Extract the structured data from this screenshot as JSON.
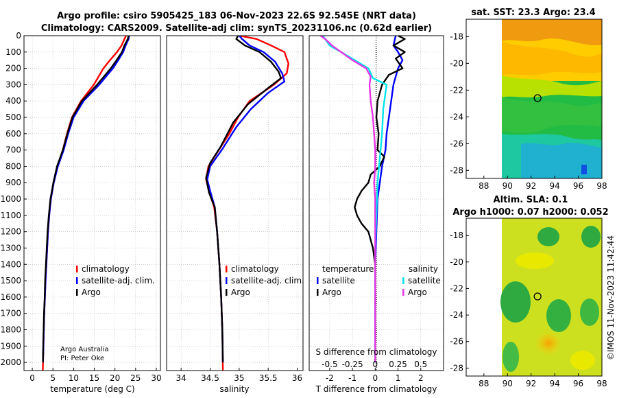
{
  "title_line1": "Argo profile: csiro 5905425_183 06-Nov-2023 22.6S 92.545E (NRT data)",
  "title_line2": "Climatology: CARS2009. Satellite-adj clim: synTS_20231106.nc (0.62d earlier)",
  "depth_ticks": [
    0,
    100,
    200,
    300,
    400,
    500,
    600,
    700,
    800,
    900,
    1000,
    1100,
    1200,
    1300,
    1400,
    1500,
    1600,
    1700,
    1800,
    1900,
    2000
  ],
  "colors": {
    "red": "#ff0000",
    "blue": "#0000ff",
    "black": "#000000",
    "cyan": "#00e5ee",
    "magenta": "#e633e6"
  },
  "credit": {
    "line1": "Argo Australia",
    "line2": "PI: Peter Oke"
  },
  "chart_data": [
    {
      "type": "line",
      "name": "temperature",
      "xlabel": "temperature (deg C)",
      "xlim": [
        -2,
        31
      ],
      "ylim": [
        2050,
        0
      ],
      "xticks": [
        0,
        5,
        10,
        15,
        20,
        25,
        30
      ],
      "legend": [
        "climatology",
        "satellite-adj. clim.",
        "Argo"
      ],
      "series": [
        {
          "name": "climatology",
          "color": "#ff0000",
          "points": [
            [
              22.7,
              0
            ],
            [
              22.3,
              20
            ],
            [
              21.6,
              60
            ],
            [
              20.5,
              100
            ],
            [
              18.8,
              150
            ],
            [
              17.2,
              200
            ],
            [
              14.9,
              300
            ],
            [
              11.8,
              400
            ],
            [
              9.6,
              500
            ],
            [
              8.4,
              600
            ],
            [
              7.4,
              700
            ],
            [
              6.1,
              800
            ],
            [
              5.2,
              900
            ],
            [
              4.5,
              1000
            ],
            [
              4.1,
              1100
            ],
            [
              3.8,
              1200
            ],
            [
              3.6,
              1300
            ],
            [
              3.4,
              1400
            ],
            [
              3.2,
              1500
            ],
            [
              3.05,
              1600
            ],
            [
              2.9,
              1700
            ],
            [
              2.8,
              1800
            ],
            [
              2.7,
              1900
            ],
            [
              2.6,
              2000
            ],
            [
              2.55,
              2050
            ]
          ]
        },
        {
          "name": "satellite-adj. clim.",
          "color": "#0000ff",
          "points": [
            [
              23.4,
              0
            ],
            [
              23.3,
              20
            ],
            [
              22.6,
              60
            ],
            [
              22.0,
              100
            ],
            [
              20.8,
              150
            ],
            [
              19.5,
              200
            ],
            [
              16.2,
              300
            ],
            [
              12.4,
              400
            ],
            [
              10.0,
              500
            ],
            [
              8.7,
              600
            ],
            [
              7.6,
              700
            ],
            [
              6.2,
              800
            ],
            [
              5.2,
              900
            ],
            [
              4.5,
              1000
            ],
            [
              4.1,
              1100
            ],
            [
              3.8,
              1200
            ],
            [
              3.6,
              1300
            ],
            [
              3.4,
              1400
            ],
            [
              3.2,
              1500
            ],
            [
              3.05,
              1600
            ],
            [
              2.9,
              1700
            ],
            [
              2.8,
              1800
            ],
            [
              2.7,
              1900
            ],
            [
              2.6,
              2000
            ]
          ]
        },
        {
          "name": "Argo",
          "color": "#000000",
          "points": [
            [
              23.3,
              0
            ],
            [
              23.1,
              20
            ],
            [
              22.3,
              60
            ],
            [
              21.7,
              100
            ],
            [
              20.4,
              150
            ],
            [
              19.0,
              200
            ],
            [
              15.7,
              300
            ],
            [
              12.0,
              400
            ],
            [
              9.7,
              500
            ],
            [
              8.5,
              600
            ],
            [
              7.4,
              700
            ],
            [
              6.0,
              800
            ],
            [
              5.1,
              900
            ],
            [
              4.4,
              1000
            ],
            [
              4.0,
              1100
            ],
            [
              3.7,
              1200
            ],
            [
              3.5,
              1300
            ],
            [
              3.3,
              1400
            ],
            [
              3.1,
              1500
            ],
            [
              3.0,
              1600
            ],
            [
              2.85,
              1700
            ],
            [
              2.75,
              1800
            ],
            [
              2.65,
              1900
            ],
            [
              2.6,
              2000
            ]
          ]
        }
      ]
    },
    {
      "type": "line",
      "name": "salinity",
      "xlabel": "salinity",
      "xlim": [
        33.75,
        36.1
      ],
      "ylim": [
        2050,
        0
      ],
      "xticks": [
        34,
        34.5,
        35,
        35.5,
        36
      ],
      "legend": [
        "climatology",
        "satellite-adj. clim.",
        "Argo"
      ],
      "series": [
        {
          "name": "climatology",
          "color": "#ff0000",
          "points": [
            [
              35.0,
              0
            ],
            [
              35.3,
              20
            ],
            [
              35.55,
              60
            ],
            [
              35.78,
              100
            ],
            [
              35.85,
              170
            ],
            [
              35.82,
              230
            ],
            [
              35.6,
              300
            ],
            [
              35.18,
              400
            ],
            [
              34.98,
              500
            ],
            [
              34.83,
              600
            ],
            [
              34.65,
              700
            ],
            [
              34.47,
              800
            ],
            [
              34.43,
              880
            ],
            [
              34.48,
              950
            ],
            [
              34.57,
              1050
            ],
            [
              34.62,
              1200
            ],
            [
              34.66,
              1400
            ],
            [
              34.69,
              1600
            ],
            [
              34.71,
              1800
            ],
            [
              34.72,
              2050
            ]
          ]
        },
        {
          "name": "satellite-adj. clim.",
          "color": "#0000ff",
          "points": [
            [
              35.0,
              0
            ],
            [
              35.05,
              20
            ],
            [
              35.18,
              60
            ],
            [
              35.42,
              100
            ],
            [
              35.62,
              160
            ],
            [
              35.74,
              230
            ],
            [
              35.78,
              280
            ],
            [
              35.5,
              350
            ],
            [
              35.2,
              450
            ],
            [
              34.95,
              560
            ],
            [
              34.7,
              700
            ],
            [
              34.5,
              800
            ],
            [
              34.45,
              880
            ],
            [
              34.5,
              950
            ],
            [
              34.58,
              1050
            ],
            [
              34.62,
              1200
            ],
            [
              34.66,
              1400
            ],
            [
              34.69,
              1600
            ],
            [
              34.71,
              1800
            ],
            [
              34.72,
              2000
            ]
          ]
        },
        {
          "name": "Argo",
          "color": "#000000",
          "points": [
            [
              34.98,
              0
            ],
            [
              34.95,
              20
            ],
            [
              35.1,
              60
            ],
            [
              35.35,
              100
            ],
            [
              35.55,
              160
            ],
            [
              35.68,
              220
            ],
            [
              35.72,
              260
            ],
            [
              35.5,
              320
            ],
            [
              35.15,
              420
            ],
            [
              34.9,
              530
            ],
            [
              34.68,
              680
            ],
            [
              34.5,
              780
            ],
            [
              34.43,
              870
            ],
            [
              34.48,
              960
            ],
            [
              34.58,
              1050
            ],
            [
              34.62,
              1200
            ],
            [
              34.66,
              1400
            ],
            [
              34.69,
              1600
            ],
            [
              34.71,
              1800
            ],
            [
              34.72,
              2000
            ]
          ]
        }
      ]
    },
    {
      "type": "line",
      "name": "differences",
      "xlabel": "T difference from climatology",
      "xlabel_top": "S difference from climatology",
      "xlim": [
        -2.9,
        3.0
      ],
      "ylim": [
        2050,
        0
      ],
      "xticks": [
        -2,
        -1,
        0,
        1,
        2
      ],
      "s_ticks": [
        -0.5,
        -0.25,
        0,
        0.25,
        0.5
      ],
      "legend_temperature": {
        "title": "temperature",
        "items": [
          "satellite",
          "Argo"
        ]
      },
      "legend_salinity": {
        "title": "salinity",
        "items": [
          "satellite",
          "Argo"
        ]
      },
      "series": [
        {
          "name": "temperature satellite",
          "color": "#0000ff",
          "points": [
            [
              0.9,
              0
            ],
            [
              0.8,
              60
            ],
            [
              1.0,
              100
            ],
            [
              1.2,
              150
            ],
            [
              1.0,
              200
            ],
            [
              0.9,
              250
            ],
            [
              0.8,
              300
            ],
            [
              0.7,
              400
            ],
            [
              0.6,
              500
            ],
            [
              0.5,
              600
            ],
            [
              0.45,
              700
            ],
            [
              0.3,
              800
            ],
            [
              0.2,
              900
            ],
            [
              0.1,
              1000
            ],
            [
              0.05,
              1200
            ],
            [
              0,
              1400
            ],
            [
              0,
              1600
            ],
            [
              0,
              1800
            ],
            [
              0,
              2000
            ]
          ]
        },
        {
          "name": "temperature Argo",
          "color": "#000000",
          "points": [
            [
              1.0,
              0
            ],
            [
              1.3,
              20
            ],
            [
              0.8,
              60
            ],
            [
              1.3,
              100
            ],
            [
              0.9,
              140
            ],
            [
              1.2,
              200
            ],
            [
              0.6,
              240
            ],
            [
              0.3,
              300
            ],
            [
              0.1,
              400
            ],
            [
              0.05,
              500
            ],
            [
              0.15,
              600
            ],
            [
              0.1,
              700
            ],
            [
              0.4,
              740
            ],
            [
              0.2,
              800
            ],
            [
              -0.2,
              850
            ],
            [
              -0.3,
              900
            ],
            [
              -0.6,
              950
            ],
            [
              -0.8,
              1000
            ],
            [
              -0.9,
              1050
            ],
            [
              -0.8,
              1100
            ],
            [
              -0.6,
              1150
            ],
            [
              -0.3,
              1200
            ],
            [
              -0.1,
              1300
            ],
            [
              0,
              1400
            ],
            [
              0,
              1600
            ],
            [
              0,
              1800
            ],
            [
              0,
              2000
            ]
          ]
        },
        {
          "name": "salinity satellite",
          "color": "#00e5ee",
          "points": [
            [
              -2.3,
              0
            ],
            [
              -2.0,
              60
            ],
            [
              -1.5,
              100
            ],
            [
              -0.9,
              150
            ],
            [
              -0.3,
              200
            ],
            [
              -0.1,
              260
            ],
            [
              0.5,
              300
            ],
            [
              0.45,
              350
            ],
            [
              0.35,
              450
            ],
            [
              0.3,
              600
            ],
            [
              0.2,
              750
            ],
            [
              0.1,
              900
            ],
            [
              0.05,
              1100
            ],
            [
              0,
              1300
            ],
            [
              0,
              1500
            ],
            [
              0,
              1700
            ],
            [
              0,
              1900
            ],
            [
              0,
              2000
            ]
          ]
        },
        {
          "name": "salinity Argo",
          "color": "#e633e6",
          "points": [
            [
              -2.4,
              0
            ],
            [
              -2.2,
              20
            ],
            [
              -1.9,
              60
            ],
            [
              -1.5,
              100
            ],
            [
              -1.0,
              150
            ],
            [
              -0.4,
              200
            ],
            [
              -0.2,
              250
            ],
            [
              -0.25,
              300
            ],
            [
              -0.2,
              400
            ],
            [
              -0.1,
              500
            ],
            [
              -0.05,
              600
            ],
            [
              0,
              700
            ],
            [
              0,
              800
            ],
            [
              -0.05,
              900
            ],
            [
              0,
              1000
            ],
            [
              0,
              1200
            ],
            [
              0,
              1400
            ],
            [
              0,
              1600
            ],
            [
              0,
              1800
            ],
            [
              0,
              2000
            ]
          ]
        }
      ]
    }
  ],
  "maps": [
    {
      "title": "sat. SST: 23.3 Argo: 23.4",
      "xticks": [
        88,
        90,
        92,
        94,
        96,
        98
      ],
      "yticks": [
        -18,
        -20,
        -22,
        -24,
        -26,
        -28
      ],
      "lon_range": [
        86.5,
        98
      ],
      "lat_range": [
        -16.7,
        -28.6
      ],
      "profile": [
        92.55,
        -22.6
      ]
    },
    {
      "title_line1": "Altim. SLA: 0.1",
      "title_line2": "Argo h1000: 0.07 h2000: 0.052",
      "xticks": [
        88,
        90,
        92,
        94,
        96,
        98
      ],
      "yticks": [
        -18,
        -20,
        -22,
        -24,
        -26,
        -28
      ],
      "lon_range": [
        86.5,
        98
      ],
      "lat_range": [
        -16.7,
        -28.6
      ],
      "profile": [
        92.55,
        -22.6
      ]
    }
  ],
  "timestamp": "©IMOS 11-Nov-2023 11:42:44"
}
